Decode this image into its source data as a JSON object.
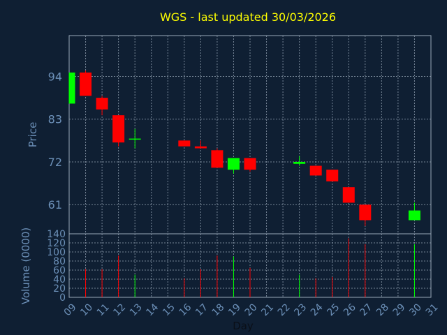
{
  "title": "WGS - last updated 30/03/2026",
  "colors": {
    "background": "#0f1f33",
    "axis_text": "#6c90b8",
    "title": "#ffff00",
    "up": "#00ff00",
    "down": "#ff0000",
    "grid": "#9aa8b8"
  },
  "chart_data": {
    "type": "candlestick",
    "title": "WGS - last updated 30/03/2026",
    "xlabel": "Day",
    "ylabel": "Price",
    "volume_label": "Volume (0000)",
    "x_ticks": [
      "09",
      "10",
      "11",
      "12",
      "13",
      "14",
      "15",
      "16",
      "17",
      "18",
      "19",
      "20",
      "21",
      "22",
      "23",
      "24",
      "25",
      "26",
      "27",
      "28",
      "29",
      "30",
      "31"
    ],
    "price_ticks": [
      61,
      72,
      83,
      94
    ],
    "volume_ticks": [
      0,
      20,
      40,
      60,
      80,
      100,
      120,
      140
    ],
    "price_range": [
      53.5,
      104.5
    ],
    "volume_range": [
      0,
      140
    ],
    "grid": true,
    "candles": [
      {
        "day": 9,
        "open": 87.0,
        "high": 95.0,
        "low": 87.0,
        "close": 95.0,
        "volume": 0
      },
      {
        "day": 10,
        "open": 95.0,
        "high": 95.5,
        "low": 89.0,
        "close": 89.0,
        "volume": 62
      },
      {
        "day": 11,
        "open": 88.5,
        "high": 89.0,
        "low": 84.0,
        "close": 85.5,
        "volume": 62
      },
      {
        "day": 12,
        "open": 84.0,
        "high": 84.0,
        "low": 76.0,
        "close": 77.0,
        "volume": 92
      },
      {
        "day": 13,
        "open": 78.0,
        "high": 80.5,
        "low": 75.5,
        "close": 78.0,
        "volume": 50
      },
      {
        "day": 16,
        "open": 77.5,
        "high": 77.5,
        "low": 76.0,
        "close": 76.0,
        "volume": 42
      },
      {
        "day": 17,
        "open": 76.0,
        "high": 77.5,
        "low": 75.5,
        "close": 75.5,
        "volume": 62
      },
      {
        "day": 18,
        "open": 75.0,
        "high": 75.5,
        "low": 70.5,
        "close": 70.5,
        "volume": 92
      },
      {
        "day": 19,
        "open": 70.0,
        "high": 73.0,
        "low": 69.0,
        "close": 73.0,
        "volume": 90
      },
      {
        "day": 20,
        "open": 73.0,
        "high": 73.0,
        "low": 69.5,
        "close": 70.0,
        "volume": 65
      },
      {
        "day": 23,
        "open": 71.5,
        "high": 73.5,
        "low": 71.0,
        "close": 72.0,
        "volume": 50
      },
      {
        "day": 24,
        "open": 71.0,
        "high": 71.0,
        "low": 68.5,
        "close": 68.5,
        "volume": 42
      },
      {
        "day": 25,
        "open": 70.0,
        "high": 70.0,
        "low": 67.0,
        "close": 67.0,
        "volume": 45
      },
      {
        "day": 26,
        "open": 65.5,
        "high": 65.5,
        "low": 61.5,
        "close": 61.5,
        "volume": 130
      },
      {
        "day": 27,
        "open": 61.0,
        "high": 61.0,
        "low": 55.5,
        "close": 57.0,
        "volume": 117
      },
      {
        "day": 30,
        "open": 57.0,
        "high": 61.5,
        "low": 57.0,
        "close": 59.5,
        "volume": 117
      }
    ]
  }
}
